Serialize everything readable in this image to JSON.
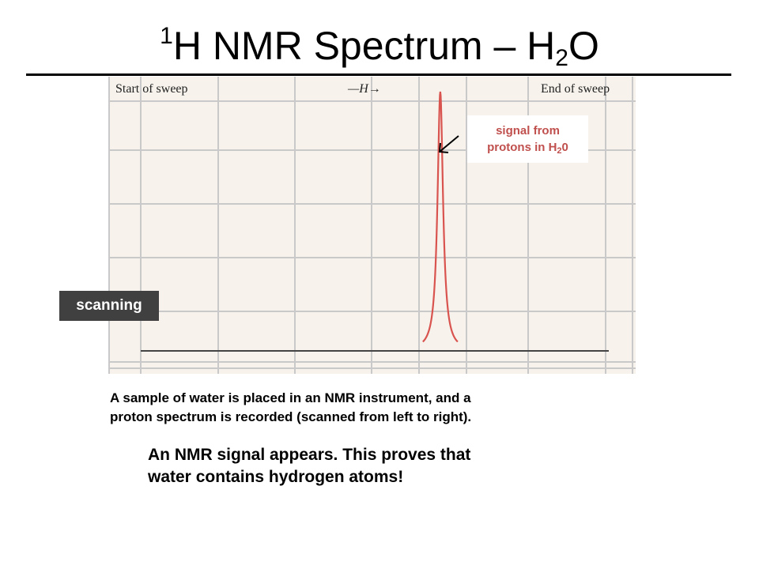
{
  "title": {
    "sup": "1",
    "main": "H NMR Spectrum – H",
    "sub": "2",
    "end": "O"
  },
  "chart_data": {
    "type": "line",
    "header_left": "Start of sweep",
    "header_center": "—H→",
    "header_right": "End of sweep",
    "x_direction": "left-to-right sweep",
    "grid": true,
    "series": [
      {
        "color": "#d9534f",
        "peak_position_fraction": 0.64,
        "peak_height_fraction": 0.83
      }
    ],
    "baseline_color": "#444444"
  },
  "labels": {
    "scanning": "scanning",
    "signal_line1": "signal from",
    "signal_line2_pre": "protons in H",
    "signal_line2_sub": "2",
    "signal_line2_post": "0"
  },
  "caption": {
    "line1": "A sample of water is placed in an NMR instrument, and a",
    "line2": "proton spectrum is recorded (scanned from left to right)."
  },
  "conclusion": {
    "line1": "An NMR signal appears.  This proves that",
    "line2": "water contains hydrogen atoms!"
  },
  "colors": {
    "chart_background": "#f7f3ec",
    "grid": "#c9c9c9",
    "peak": "#d9534f",
    "callout_text": "#c0504d",
    "scanning_bg": "#404040"
  }
}
